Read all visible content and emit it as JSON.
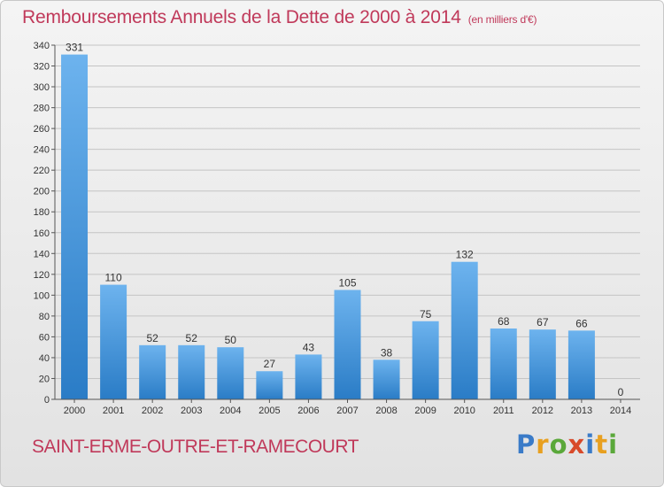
{
  "header": {
    "title": "Remboursements Annuels de la Dette de 2000 à 2014",
    "unit": "(en milliers d'€)"
  },
  "footer": {
    "town": "SAINT-ERME-OUTRE-ET-RAMECOURT",
    "logo_letters": [
      "P",
      "r",
      "o",
      "x",
      "i",
      "t",
      "i"
    ]
  },
  "colors": {
    "title": "#c0395a",
    "bar_light": "#6db3ee",
    "bar_dark": "#2a7cc6"
  },
  "chart_data": {
    "type": "bar",
    "title": "Remboursements Annuels de la Dette de 2000 à 2014",
    "xlabel": "",
    "ylabel": "",
    "categories": [
      "2000",
      "2001",
      "2002",
      "2003",
      "2004",
      "2005",
      "2006",
      "2007",
      "2008",
      "2009",
      "2010",
      "2011",
      "2012",
      "2013",
      "2014"
    ],
    "values": [
      331,
      110,
      52,
      52,
      50,
      27,
      43,
      105,
      38,
      75,
      132,
      68,
      67,
      66,
      0
    ],
    "ylim": [
      0,
      340
    ],
    "yticks": [
      0,
      20,
      40,
      60,
      80,
      100,
      120,
      140,
      160,
      180,
      200,
      220,
      240,
      260,
      280,
      300,
      320,
      340
    ],
    "grid": true,
    "legend": "none"
  }
}
